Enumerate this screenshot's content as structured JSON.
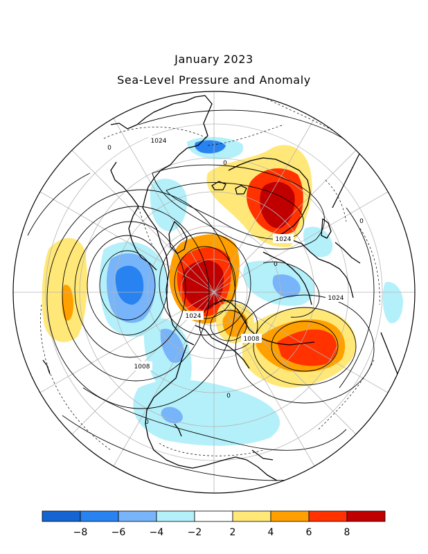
{
  "header": {
    "title": "January 2023",
    "subtitle": "Sea-Level Pressure and Anomaly"
  },
  "contour_labels": [
    "1024",
    "1024",
    "1024",
    "1024",
    "1008",
    "1008",
    "0",
    "0",
    "0",
    "0",
    "0",
    "0"
  ],
  "colorbar": {
    "bins": [
      {
        "color": "#1464d2"
      },
      {
        "color": "#2882f0"
      },
      {
        "color": "#78b4fa"
      },
      {
        "color": "#b4f0fa"
      },
      {
        "color": "#ffffff"
      },
      {
        "color": "#ffe878"
      },
      {
        "color": "#ffa000"
      },
      {
        "color": "#ff3200"
      },
      {
        "color": "#c00000"
      }
    ],
    "tick_labels": [
      "-8",
      "-6",
      "-4",
      "-2",
      "2",
      "4",
      "6",
      "8"
    ]
  }
}
